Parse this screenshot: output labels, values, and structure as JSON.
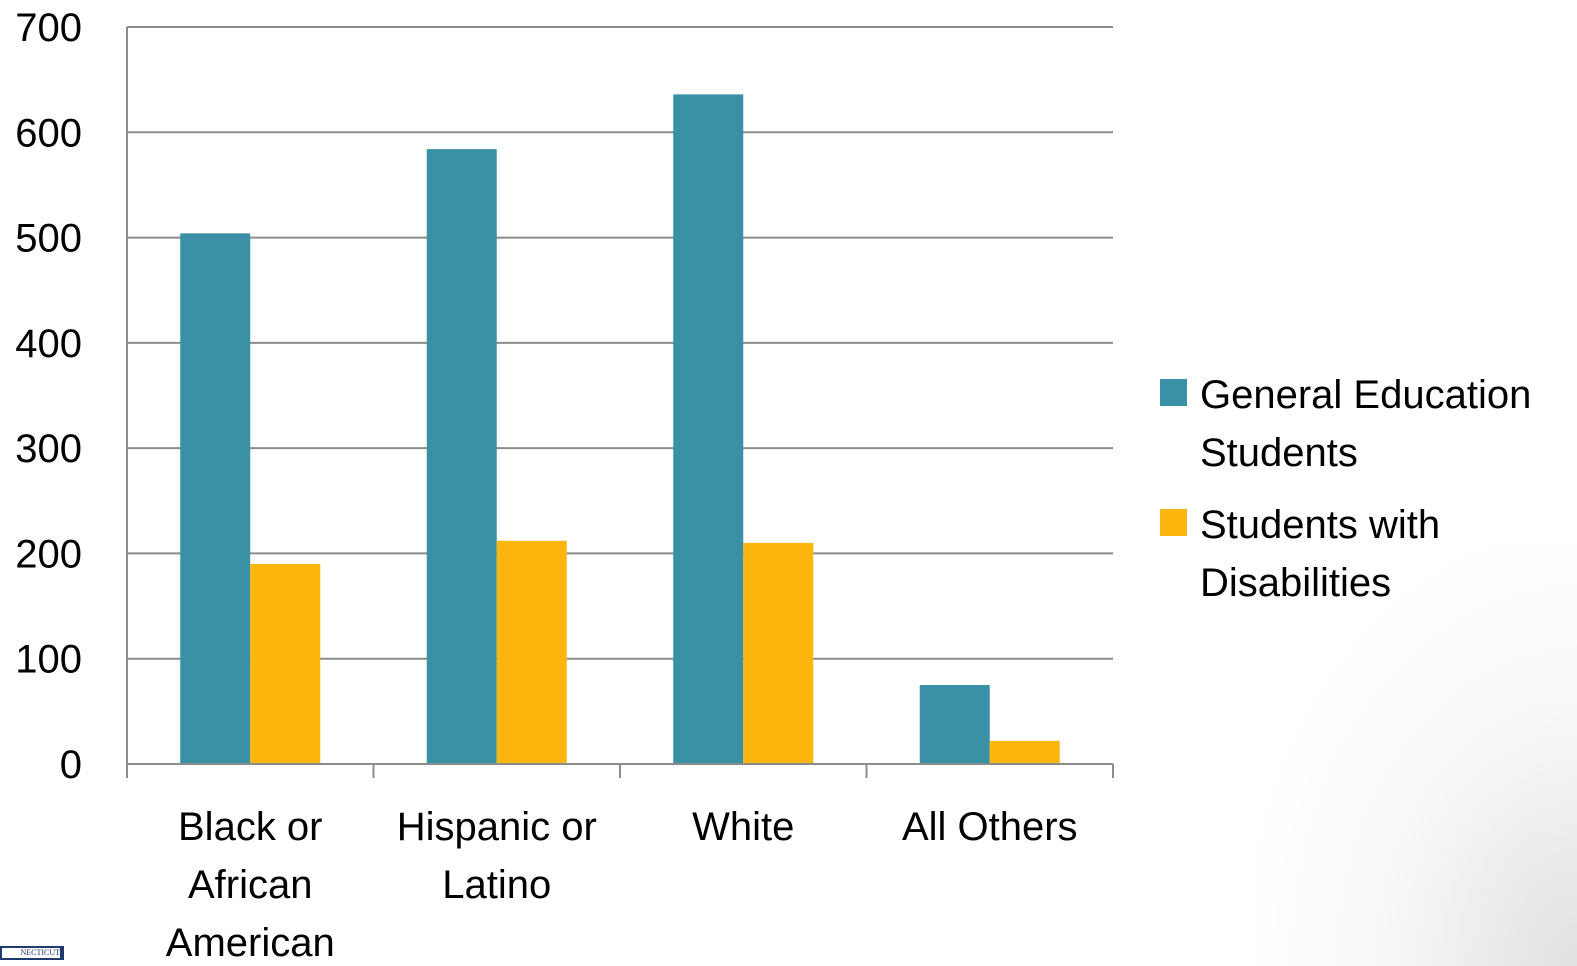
{
  "chart_data": {
    "type": "bar",
    "title": "",
    "xlabel": "",
    "ylabel": "",
    "ylim": [
      0,
      700
    ],
    "yticks": [
      0,
      100,
      200,
      300,
      400,
      500,
      600,
      700
    ],
    "grid": true,
    "legend_position": "right",
    "categories": [
      [
        "Black  or",
        "African",
        "American"
      ],
      [
        "Hispanic or",
        "Latino"
      ],
      [
        "White"
      ],
      [
        "All Others"
      ]
    ],
    "series": [
      {
        "name": [
          "General Education",
          "Students"
        ],
        "color": "#3a91a6",
        "values": [
          504,
          584,
          636,
          75
        ]
      },
      {
        "name": [
          "Students with",
          "Disabilities"
        ],
        "color": "#fdb60d",
        "values": [
          190,
          212,
          210,
          22
        ]
      }
    ]
  },
  "logo": {
    "text": "NECTICUT"
  }
}
